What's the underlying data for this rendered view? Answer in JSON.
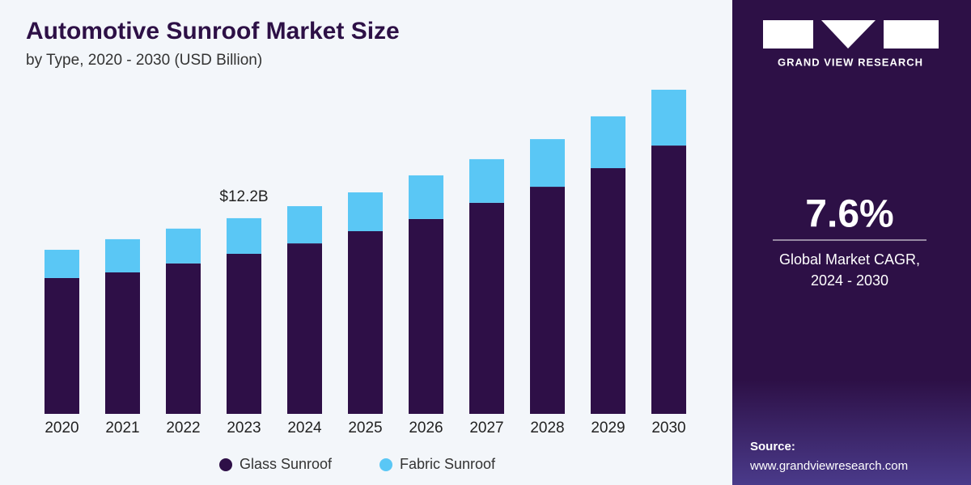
{
  "chart_data": {
    "type": "stacked-bar",
    "title": "Automotive Sunroof Market Size",
    "subtitle": "by Type, 2020 - 2030 (USD Billion)",
    "categories": [
      "2020",
      "2021",
      "2022",
      "2023",
      "2024",
      "2025",
      "2026",
      "2027",
      "2028",
      "2029",
      "2030"
    ],
    "series": [
      {
        "name": "Glass Sunroof",
        "color": "#2e0f47",
        "values": [
          8.47,
          8.82,
          9.38,
          9.98,
          10.63,
          11.39,
          12.15,
          13.16,
          14.16,
          15.32,
          16.73
        ]
      },
      {
        "name": "Fabric Sunroof",
        "color": "#5ac7f5",
        "values": [
          1.76,
          2.07,
          2.17,
          2.22,
          2.32,
          2.42,
          2.72,
          2.72,
          2.97,
          3.23,
          3.48
        ]
      }
    ],
    "annotations": [
      {
        "x": "2023",
        "value": 12.2,
        "label": "$12.2B"
      }
    ]
  },
  "panel": {
    "brand": "GRAND VIEW RESEARCH",
    "cagr": "7.6%",
    "cagr_label": [
      "Global Market CAGR,",
      "2024 - 2030"
    ],
    "source_label": "Source:",
    "source_url": "www.grandviewresearch.com"
  }
}
